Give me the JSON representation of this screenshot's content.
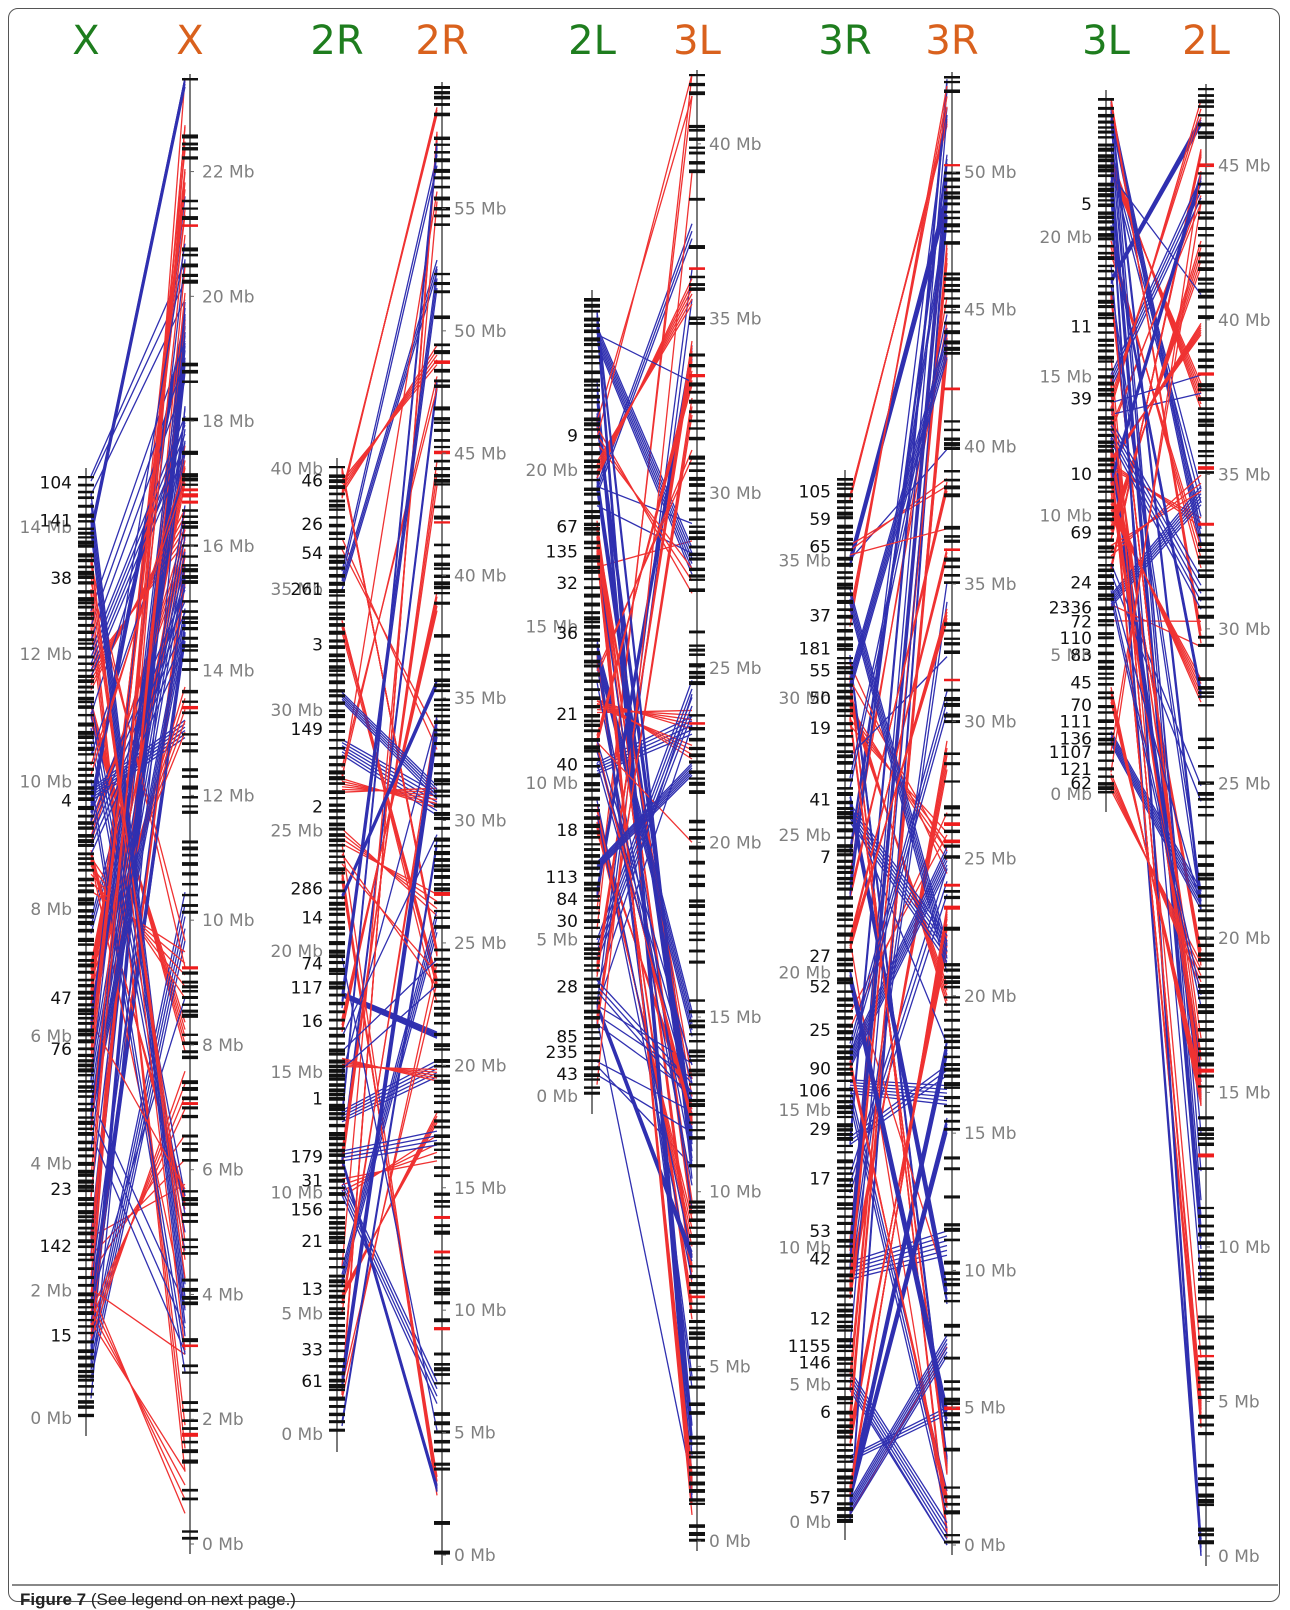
{
  "colors": {
    "ref": "#1e7d1e",
    "query": "#d9611d",
    "same": "#1a1aa8",
    "inverted": "#ee1c1c",
    "tick_text": "#808080"
  },
  "caption": {
    "label": "Figure 7",
    "text": "(See legend on next page.)"
  },
  "panels": [
    {
      "id": "X",
      "ref_name": "X",
      "query_name": "X",
      "ref_ticks": [
        "0 Mb",
        "2 Mb",
        "4 Mb",
        "6 Mb",
        "8 Mb",
        "10 Mb",
        "12 Mb",
        "14 Mb"
      ],
      "ref_tick_values": [
        0,
        2,
        4,
        6,
        8,
        10,
        12,
        14
      ],
      "ref_max": 14.8,
      "query_ticks": [
        "0 Mb",
        "2 Mb",
        "4 Mb",
        "6 Mb",
        "8 Mb",
        "10 Mb",
        "12 Mb",
        "14 Mb",
        "16 Mb",
        "18 Mb",
        "20 Mb",
        "22 Mb"
      ],
      "query_tick_values": [
        0,
        2,
        4,
        6,
        8,
        10,
        12,
        14,
        16,
        18,
        20,
        22
      ],
      "query_max": 23.5,
      "scaffolds": [
        "104",
        "141",
        "38",
        "4",
        "47",
        "76",
        "23",
        "142",
        "15"
      ],
      "scaffold_pos": [
        14.7,
        14.1,
        13.2,
        9.7,
        6.6,
        5.8,
        3.6,
        2.7,
        1.3
      ]
    },
    {
      "id": "2R",
      "ref_name": "2R",
      "query_name": "2R",
      "ref_ticks": [
        "0 Mb",
        "5 Mb",
        "10 Mb",
        "15 Mb",
        "20 Mb",
        "25 Mb",
        "30 Mb",
        "35 Mb",
        "40 Mb"
      ],
      "ref_tick_values": [
        0,
        5,
        10,
        15,
        20,
        25,
        30,
        35,
        40
      ],
      "ref_max": 40.1,
      "query_ticks": [
        "0 Mb",
        "5 Mb",
        "10 Mb",
        "15 Mb",
        "20 Mb",
        "25 Mb",
        "30 Mb",
        "35 Mb",
        "40 Mb",
        "45 Mb",
        "50 Mb",
        "55 Mb"
      ],
      "query_tick_values": [
        0,
        5,
        10,
        15,
        20,
        25,
        30,
        35,
        40,
        45,
        50,
        55
      ],
      "query_max": 60.0,
      "scaffolds": [
        "46",
        "26",
        "54",
        "261",
        "3",
        "149",
        "2",
        "286",
        "14",
        "74",
        "117",
        "16",
        "1",
        "179",
        "31",
        "156",
        "21",
        "13",
        "33",
        "61"
      ],
      "scaffold_pos": [
        39.5,
        37.7,
        36.5,
        35.0,
        32.7,
        29.2,
        26.0,
        22.6,
        21.4,
        19.5,
        18.5,
        17.1,
        13.9,
        11.5,
        10.5,
        9.3,
        8.0,
        6.0,
        3.5,
        2.2
      ]
    },
    {
      "id": "2L3L",
      "ref_name": "2L",
      "query_name": "3L",
      "ref_ticks": [
        "0 Mb",
        "5 Mb",
        "10 Mb",
        "15 Mb",
        "20 Mb"
      ],
      "ref_tick_values": [
        0,
        5,
        10,
        15,
        20
      ],
      "ref_max": 25.5,
      "query_ticks": [
        "0 Mb",
        "5 Mb",
        "10 Mb",
        "15 Mb",
        "20 Mb",
        "25 Mb",
        "30 Mb",
        "35 Mb",
        "40 Mb"
      ],
      "query_tick_values": [
        0,
        5,
        10,
        15,
        20,
        25,
        30,
        35,
        40
      ],
      "query_max": 42.0,
      "scaffolds": [
        "9",
        "67",
        "135",
        "32",
        "36",
        "21",
        "40",
        "18",
        "113",
        "84",
        "30",
        "28",
        "85",
        "235",
        "43"
      ],
      "scaffold_pos": [
        21.1,
        18.2,
        17.4,
        16.4,
        14.8,
        12.2,
        10.6,
        8.5,
        7.0,
        6.3,
        5.6,
        3.5,
        1.9,
        1.4,
        0.7
      ]
    },
    {
      "id": "3R",
      "ref_name": "3R",
      "query_name": "3R",
      "ref_ticks": [
        "0 Mb",
        "5 Mb",
        "10 Mb",
        "15 Mb",
        "20 Mb",
        "25 Mb",
        "30 Mb",
        "35 Mb"
      ],
      "ref_tick_values": [
        0,
        5,
        10,
        15,
        20,
        25,
        30,
        35
      ],
      "ref_max": 38.0,
      "query_ticks": [
        "0 Mb",
        "5 Mb",
        "10 Mb",
        "15 Mb",
        "20 Mb",
        "25 Mb",
        "30 Mb",
        "35 Mb",
        "40 Mb",
        "45 Mb",
        "50 Mb"
      ],
      "query_tick_values": [
        0,
        5,
        10,
        15,
        20,
        25,
        30,
        35,
        40,
        45,
        50
      ],
      "query_max": 53.5,
      "scaffolds": [
        "105",
        "59",
        "65",
        "37",
        "181",
        "55",
        "50",
        "19",
        "41",
        "7",
        "27",
        "52",
        "25",
        "90",
        "106",
        "29",
        "17",
        "53",
        "42",
        "12",
        "1155",
        "146",
        "6",
        "57"
      ],
      "scaffold_pos": [
        37.5,
        36.5,
        35.5,
        33.0,
        31.8,
        31.0,
        30.0,
        28.9,
        26.3,
        24.2,
        20.6,
        19.5,
        17.9,
        16.5,
        15.7,
        14.3,
        12.5,
        10.6,
        9.6,
        7.4,
        6.4,
        5.8,
        4.0,
        0.9
      ]
    },
    {
      "id": "3L2L",
      "ref_name": "3L",
      "query_name": "2L",
      "ref_ticks": [
        "0 Mb",
        "5 Mb",
        "10 Mb",
        "15 Mb",
        "20 Mb"
      ],
      "ref_tick_values": [
        0,
        5,
        10,
        15,
        20
      ],
      "ref_max": 25.0,
      "query_ticks": [
        "0 Mb",
        "5 Mb",
        "10 Mb",
        "15 Mb",
        "20 Mb",
        "25 Mb",
        "30 Mb",
        "35 Mb",
        "40 Mb",
        "45 Mb"
      ],
      "query_tick_values": [
        0,
        5,
        10,
        15,
        20,
        25,
        30,
        35,
        40,
        45
      ],
      "query_max": 47.5,
      "scaffolds": [
        "5",
        "11",
        "39",
        "10",
        "69",
        "24",
        "2336",
        "72",
        "110",
        "83",
        "45",
        "70",
        "111",
        "136",
        "1107",
        "121",
        "62"
      ],
      "scaffold_pos": [
        21.2,
        16.8,
        14.2,
        11.5,
        9.4,
        7.6,
        6.7,
        6.2,
        5.6,
        5.0,
        4.0,
        3.2,
        2.6,
        2.0,
        1.5,
        0.9,
        0.4
      ]
    }
  ]
}
